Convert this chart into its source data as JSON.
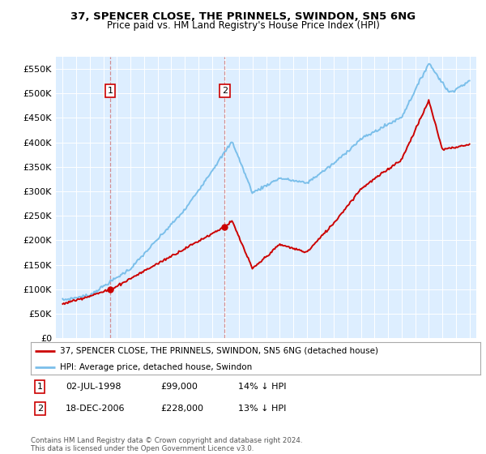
{
  "title": "37, SPENCER CLOSE, THE PRINNELS, SWINDON, SN5 6NG",
  "subtitle": "Price paid vs. HM Land Registry's House Price Index (HPI)",
  "legend_line1": "37, SPENCER CLOSE, THE PRINNELS, SWINDON, SN5 6NG (detached house)",
  "legend_line2": "HPI: Average price, detached house, Swindon",
  "footer": "Contains HM Land Registry data © Crown copyright and database right 2024.\nThis data is licensed under the Open Government Licence v3.0.",
  "sale1_date": "02-JUL-1998",
  "sale1_price": "£99,000",
  "sale1_hpi": "14% ↓ HPI",
  "sale2_date": "18-DEC-2006",
  "sale2_price": "£228,000",
  "sale2_hpi": "13% ↓ HPI",
  "sale1_label": "1",
  "sale2_label": "2",
  "sale1_x": 1998.5,
  "sale2_x": 2006.95,
  "sale1_price_val": 99000,
  "sale2_price_val": 228000,
  "hpi_color": "#7bbfea",
  "property_color": "#cc0000",
  "dashed_color": "#cc0000",
  "bg_color": "#ddeeff",
  "grid_color": "#ffffff",
  "ylim": [
    0,
    575000
  ],
  "yticks": [
    0,
    50000,
    100000,
    150000,
    200000,
    250000,
    300000,
    350000,
    400000,
    450000,
    500000,
    550000
  ],
  "ytick_labels": [
    "£0",
    "£50K",
    "£100K",
    "£150K",
    "£200K",
    "£250K",
    "£300K",
    "£350K",
    "£400K",
    "£450K",
    "£500K",
    "£550K"
  ],
  "xlim_start": 1994.5,
  "xlim_end": 2025.5
}
